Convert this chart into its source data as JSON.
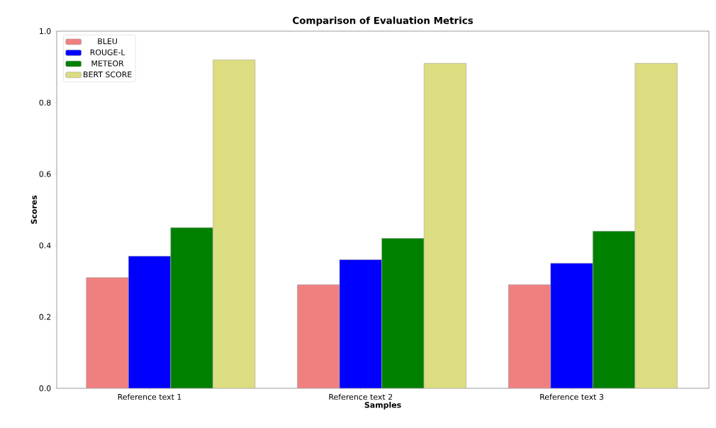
{
  "chart_data": {
    "type": "bar",
    "title": "Comparison of Evaluation Metrics",
    "xlabel": "Samples",
    "ylabel": "Scores",
    "categories": [
      "Reference text 1",
      "Reference text 2",
      "Reference text 3"
    ],
    "series": [
      {
        "name": "BLEU",
        "color": "#f08080",
        "values": [
          0.31,
          0.29,
          0.29
        ]
      },
      {
        "name": "ROUGE-L",
        "color": "#0000ff",
        "values": [
          0.37,
          0.36,
          0.35
        ]
      },
      {
        "name": "METEOR",
        "color": "#008000",
        "values": [
          0.45,
          0.42,
          0.44
        ]
      },
      {
        "name": "BERT SCORE",
        "color": "#dcdc80",
        "values": [
          0.92,
          0.91,
          0.91
        ]
      }
    ],
    "ylim": [
      0,
      1
    ],
    "yticks": [
      {
        "value": 0,
        "label": "0.0"
      },
      {
        "value": 0.2,
        "label": "0.2"
      },
      {
        "value": 0.4,
        "label": "0.4"
      },
      {
        "value": 0.6,
        "label": "0.6"
      },
      {
        "value": 0.8,
        "label": "0.8"
      },
      {
        "value": 1,
        "label": "1.0"
      }
    ],
    "legend": "top left"
  }
}
